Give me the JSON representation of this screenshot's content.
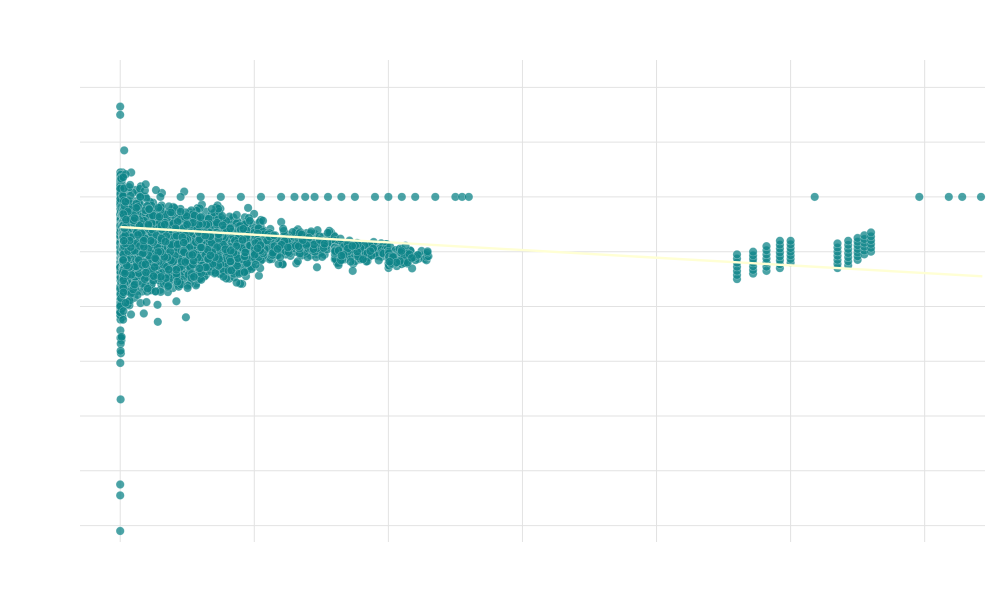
{
  "chart_data": {
    "type": "scatter",
    "title": "",
    "xlabel": "",
    "ylabel": "",
    "xlim": [
      -0.3,
      6.45
    ],
    "ylim": [
      -5.3,
      3.5
    ],
    "grid": true,
    "colors": {
      "points": "#0d8488",
      "trend": "#ffffd4",
      "grid": "#e2e2e2"
    },
    "point_clusters": [
      {
        "x_range": [
          0.0,
          0.02
        ],
        "y_mean": 0.3,
        "y_sd": 1.0,
        "n": 420
      },
      {
        "x_range": [
          0.02,
          1.0
        ],
        "y_mean": 0.1,
        "y_sd": 0.4,
        "n": 3200
      },
      {
        "x_range": [
          1.0,
          1.6
        ],
        "y_mean": 0.15,
        "y_sd": 0.2,
        "n": 320
      },
      {
        "x_range": [
          1.6,
          2.0
        ],
        "y_mean": 0.0,
        "y_sd": 0.12,
        "n": 180
      },
      {
        "x_range": [
          2.0,
          2.3
        ],
        "y_mean": -0.1,
        "y_sd": 0.12,
        "n": 90
      }
    ],
    "point_columns": [
      {
        "x": 4.6,
        "y_range": [
          -0.5,
          -0.05
        ]
      },
      {
        "x": 4.72,
        "y_range": [
          -0.4,
          0.0
        ]
      },
      {
        "x": 4.82,
        "y_range": [
          -0.35,
          0.1
        ]
      },
      {
        "x": 4.92,
        "y_range": [
          -0.3,
          0.2
        ]
      },
      {
        "x": 5.0,
        "y_range": [
          -0.2,
          0.2
        ]
      },
      {
        "x": 5.35,
        "y_range": [
          -0.3,
          0.15
        ]
      },
      {
        "x": 5.43,
        "y_range": [
          -0.25,
          0.2
        ]
      },
      {
        "x": 5.5,
        "y_range": [
          -0.15,
          0.25
        ]
      },
      {
        "x": 5.55,
        "y_range": [
          -0.05,
          0.3
        ]
      },
      {
        "x": 5.6,
        "y_range": [
          0.0,
          0.35
        ]
      }
    ],
    "capped_points_y": 1.0,
    "capped_points_x": [
      0.15,
      0.3,
      0.45,
      0.6,
      0.75,
      0.9,
      1.05,
      1.2,
      1.3,
      1.38,
      1.45,
      1.55,
      1.65,
      1.75,
      1.9,
      2.0,
      2.1,
      2.2,
      2.35,
      2.5,
      2.55,
      2.6,
      5.18,
      5.96,
      6.18,
      6.28,
      6.44
    ],
    "outliers": [
      {
        "x": 0.0,
        "y": 2.65
      },
      {
        "x": 0.0,
        "y": 2.5
      },
      {
        "x": 0.03,
        "y": 1.85
      },
      {
        "x": 0.19,
        "y": 1.23
      },
      {
        "x": 0.0,
        "y": -4.25
      },
      {
        "x": 0.0,
        "y": -4.45
      },
      {
        "x": 0.0,
        "y": -5.1
      }
    ],
    "trend_line": {
      "x": [
        0.0,
        6.43
      ],
      "y": [
        0.45,
        -0.45
      ]
    }
  }
}
